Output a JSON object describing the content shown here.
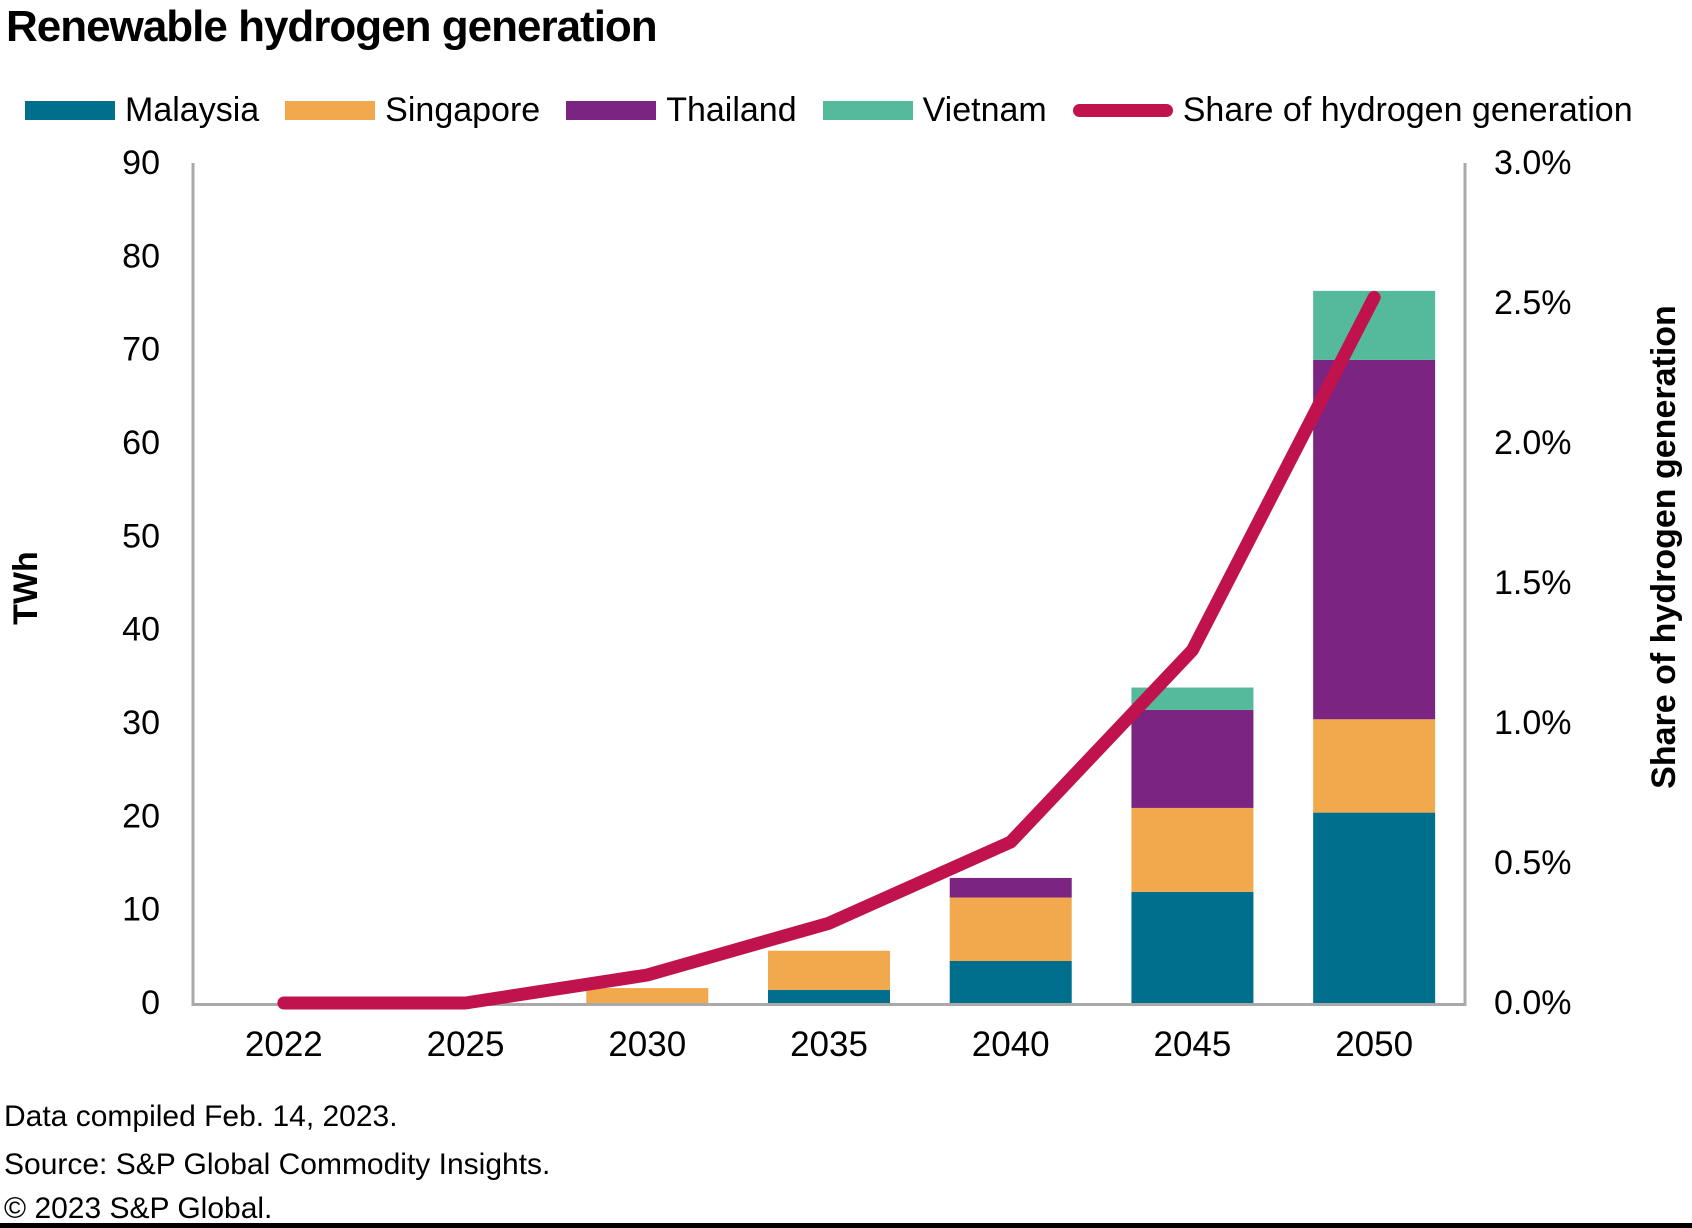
{
  "title": "Renewable hydrogen generation",
  "footer": {
    "compiled": "Data compiled Feb. 14, 2023.",
    "source": "Source: S&P Global Commodity Insights.",
    "copyright": "© 2023 S&P Global."
  },
  "chart_data": {
    "type": "bar",
    "subtype": "stacked-bars-with-line",
    "categories": [
      "2022",
      "2025",
      "2030",
      "2035",
      "2040",
      "2045",
      "2050"
    ],
    "series": [
      {
        "name": "Malaysia",
        "type": "bar",
        "color": "#006e8d",
        "values": [
          0,
          0,
          0,
          1.4,
          4.5,
          11.9,
          20.4
        ]
      },
      {
        "name": "Singapore",
        "type": "bar",
        "color": "#f2a84d",
        "values": [
          0,
          0,
          1.6,
          4.2,
          6.8,
          9.0,
          10.0
        ]
      },
      {
        "name": "Thailand",
        "type": "bar",
        "color": "#7b2482",
        "values": [
          0,
          0,
          0,
          0,
          2.1,
          10.5,
          38.5
        ]
      },
      {
        "name": "Vietnam",
        "type": "bar",
        "color": "#55b99b",
        "values": [
          0,
          0,
          0,
          0,
          0,
          2.4,
          7.4
        ]
      },
      {
        "name": "Share of hydrogen generation",
        "type": "line",
        "axis": "right",
        "color": "#c0134d",
        "values": [
          0.0,
          0.0,
          0.1,
          0.285,
          0.575,
          1.26,
          2.52
        ]
      }
    ],
    "left_axis": {
      "label": "TWh",
      "min": 0,
      "max": 90,
      "step": 10,
      "ticks": [
        "0",
        "10",
        "20",
        "30",
        "40",
        "50",
        "60",
        "70",
        "80",
        "90"
      ]
    },
    "right_axis": {
      "label": "Share of hydrogen generation",
      "min": 0,
      "max": 3.0,
      "step": 0.5,
      "ticks": [
        "0.0%",
        "0.5%",
        "1.0%",
        "1.5%",
        "2.0%",
        "2.5%",
        "3.0%"
      ]
    },
    "legend_position": "top",
    "grid": false,
    "axis_color": "#a9a9a9"
  }
}
